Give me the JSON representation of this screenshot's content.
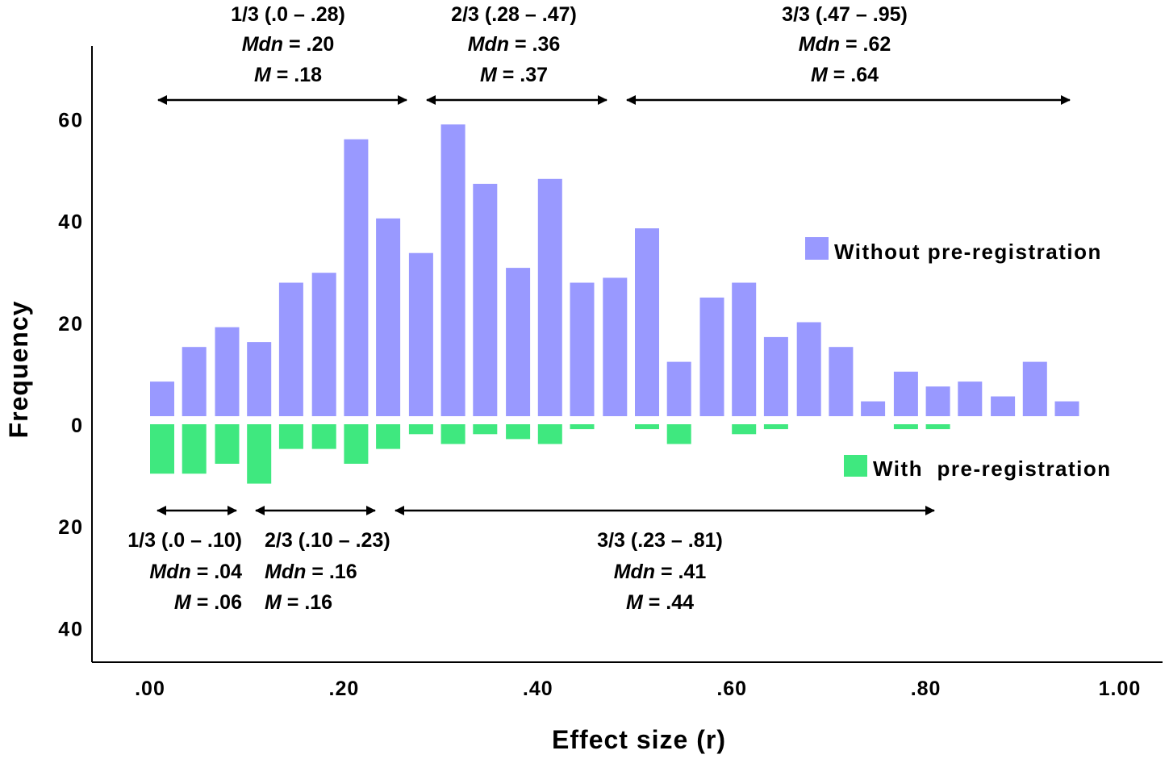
{
  "chart_data": {
    "type": "bar",
    "title": "",
    "xlabel": "Effect size (r)",
    "ylabel": "Frequency",
    "xlim": [
      0,
      1.0
    ],
    "x_ticks": [
      ".00",
      ".20",
      ".40",
      ".60",
      ".80",
      "1.00"
    ],
    "x_tick_values": [
      0,
      0.2,
      0.4,
      0.6,
      0.8,
      1.0
    ],
    "y_ticks": [
      {
        "label": "60",
        "value": 60
      },
      {
        "label": "40",
        "value": 40
      },
      {
        "label": "20",
        "value": 20
      },
      {
        "label": "0",
        "value": 0
      },
      {
        "label": "20",
        "value": -20
      },
      {
        "label": "40",
        "value": -40
      }
    ],
    "ylim": [
      -45,
      70
    ],
    "bin_width": 0.0333,
    "bin_starts": [
      0.0,
      0.033,
      0.067,
      0.1,
      0.133,
      0.167,
      0.2,
      0.233,
      0.267,
      0.3,
      0.333,
      0.367,
      0.4,
      0.433,
      0.467,
      0.5,
      0.533,
      0.567,
      0.6,
      0.633,
      0.667,
      0.7,
      0.733,
      0.767,
      0.8,
      0.833,
      0.867,
      0.9,
      0.933
    ],
    "series": [
      {
        "name": "Without pre-registration",
        "direction": "up",
        "color": "#9999FF",
        "values": [
          7,
          14,
          18,
          15,
          27,
          29,
          56,
          40,
          33,
          59,
          47,
          30,
          48,
          27,
          28,
          38,
          11,
          24,
          27,
          16,
          19,
          14,
          3,
          9,
          6,
          7,
          4,
          11,
          3
        ]
      },
      {
        "name": "With  pre-registration",
        "direction": "down",
        "color": "#3FE87F",
        "values": [
          10,
          10,
          8,
          12,
          5,
          5,
          8,
          5,
          2,
          4,
          2,
          3,
          4,
          1,
          0,
          1,
          4,
          0,
          2,
          1,
          0,
          0,
          0,
          1,
          1,
          0,
          0,
          0,
          0
        ]
      }
    ],
    "legend": [
      {
        "label": "Without pre-registration",
        "color": "#9999FF",
        "placement": "right, above zero line"
      },
      {
        "label": "With  pre-registration",
        "color": "#3FE87F",
        "placement": "right, below zero line"
      }
    ],
    "annotations": {
      "without": [
        {
          "range": [
            0.0,
            0.28
          ],
          "lines": [
            "1/3 (.0 – .28)",
            "Mdn = .20",
            "M = .18"
          ],
          "mdn_label": "Mdn",
          "mdn_value": " = .20",
          "m_label": "M",
          "m_value": " = .18"
        },
        {
          "range": [
            0.28,
            0.47
          ],
          "lines": [
            "2/3 (.28 – .47)",
            "Mdn = .36",
            "M = .37"
          ],
          "mdn_label": "Mdn",
          "mdn_value": " = .36",
          "m_label": "M",
          "m_value": " = .37"
        },
        {
          "range": [
            0.47,
            0.95
          ],
          "lines": [
            "3/3 (.47 – .95)",
            "Mdn = .62",
            "M = .64"
          ],
          "mdn_label": "Mdn",
          "mdn_value": " = .62",
          "m_label": "M",
          "m_value": " = .64"
        }
      ],
      "with": [
        {
          "range": [
            0.0,
            0.1
          ],
          "lines": [
            "1/3 (.0 – .10)",
            "Mdn = .04",
            "M = .06"
          ],
          "mdn_label": "Mdn",
          "mdn_value": " = .04",
          "m_label": "M",
          "m_value": " = .06"
        },
        {
          "range": [
            0.1,
            0.23
          ],
          "lines": [
            "2/3 (.10 – .23)",
            "Mdn = .16",
            "M = .16"
          ],
          "mdn_label": "Mdn",
          "mdn_value": " = .16",
          "m_label": "M",
          "m_value": " = .16"
        },
        {
          "range": [
            0.23,
            0.81
          ],
          "lines": [
            "3/3 (.23 – .81)",
            "Mdn = .41",
            "M = .44"
          ],
          "mdn_label": "Mdn",
          "mdn_value": " = .41",
          "m_label": "M",
          "m_value": " = .44"
        }
      ]
    },
    "grid": false
  }
}
